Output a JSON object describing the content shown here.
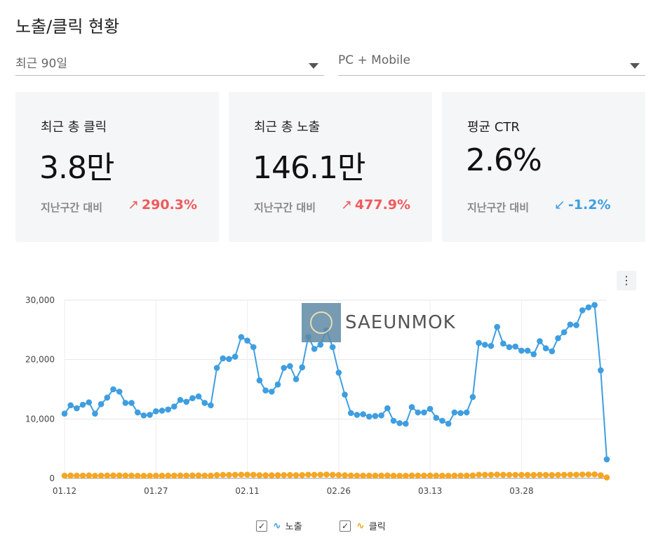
{
  "header": {
    "title": "노출/클릭 현황"
  },
  "filters": {
    "period": "최근 90일",
    "device": "PC + Mobile"
  },
  "cards": [
    {
      "label": "최근 총 클릭",
      "value": "3.8만",
      "compare_label": "지난구간 대비",
      "delta": "290.3%",
      "direction": "up",
      "arrow": "↗"
    },
    {
      "label": "최근 총 노출",
      "value": "146.1만",
      "compare_label": "지난구간 대비",
      "delta": "477.9%",
      "direction": "up",
      "arrow": "↗"
    },
    {
      "label": "평균 CTR",
      "value": "2.6%",
      "compare_label": "지난구간 대비",
      "delta": "-1.2%",
      "direction": "down",
      "arrow": "↙"
    }
  ],
  "menu": {
    "icon": "more-vertical-icon",
    "glyph": "⋮"
  },
  "watermark": {
    "text": "SAEUNMOK"
  },
  "colors": {
    "impressions": "#3e9ee0",
    "clicks": "#f5a623",
    "up": "#f05a5a",
    "down": "#3e9ee0"
  },
  "legend": {
    "impressions": "노출",
    "clicks": "클릭"
  },
  "chart_data": {
    "type": "line",
    "x_ticks": [
      "01.12",
      "01.27",
      "02.11",
      "02.26",
      "03.13",
      "03.28"
    ],
    "y_ticks": [
      "0",
      "10,000",
      "20,000",
      "30,000"
    ],
    "ylim": [
      0,
      30000
    ],
    "grid": true,
    "legend_position": "bottom",
    "series": [
      {
        "name": "노출",
        "color": "#3e9ee0",
        "values": [
          10900,
          12300,
          11800,
          12400,
          12800,
          10900,
          12500,
          13600,
          15000,
          14600,
          12700,
          12700,
          11100,
          10600,
          10700,
          11300,
          11400,
          11600,
          12100,
          13200,
          12900,
          13500,
          13800,
          12700,
          12300,
          18600,
          20200,
          20100,
          20500,
          23800,
          23200,
          22100,
          16500,
          14800,
          14600,
          15800,
          18600,
          18900,
          16700,
          18700,
          23800,
          21800,
          22500,
          24900,
          22100,
          17800,
          14100,
          11000,
          10700,
          10800,
          10400,
          10500,
          10600,
          11800,
          9700,
          9300,
          9200,
          12000,
          11100,
          11100,
          11700,
          10200,
          9700,
          9200,
          11100,
          11000,
          11100,
          13700,
          22800,
          22500,
          22300,
          25500,
          22700,
          22100,
          22200,
          21500,
          21500,
          20900,
          23100,
          21900,
          21400,
          23600,
          24600,
          25900,
          25800,
          28300,
          28800,
          29200,
          18200,
          3200
        ],
        "markers": true
      },
      {
        "name": "클릭",
        "color": "#f5a623",
        "values": [
          450,
          480,
          460,
          470,
          490,
          440,
          470,
          480,
          500,
          490,
          470,
          470,
          440,
          430,
          440,
          450,
          450,
          460,
          470,
          480,
          470,
          490,
          500,
          470,
          460,
          560,
          590,
          580,
          600,
          620,
          610,
          600,
          540,
          520,
          520,
          540,
          560,
          570,
          540,
          560,
          620,
          600,
          610,
          640,
          600,
          560,
          520,
          480,
          470,
          470,
          460,
          460,
          470,
          490,
          450,
          440,
          440,
          480,
          470,
          470,
          480,
          460,
          450,
          440,
          470,
          470,
          470,
          500,
          610,
          600,
          600,
          640,
          600,
          590,
          590,
          580,
          580,
          570,
          600,
          580,
          570,
          590,
          600,
          620,
          620,
          650,
          660,
          670,
          520,
          150
        ],
        "markers": true
      }
    ]
  }
}
